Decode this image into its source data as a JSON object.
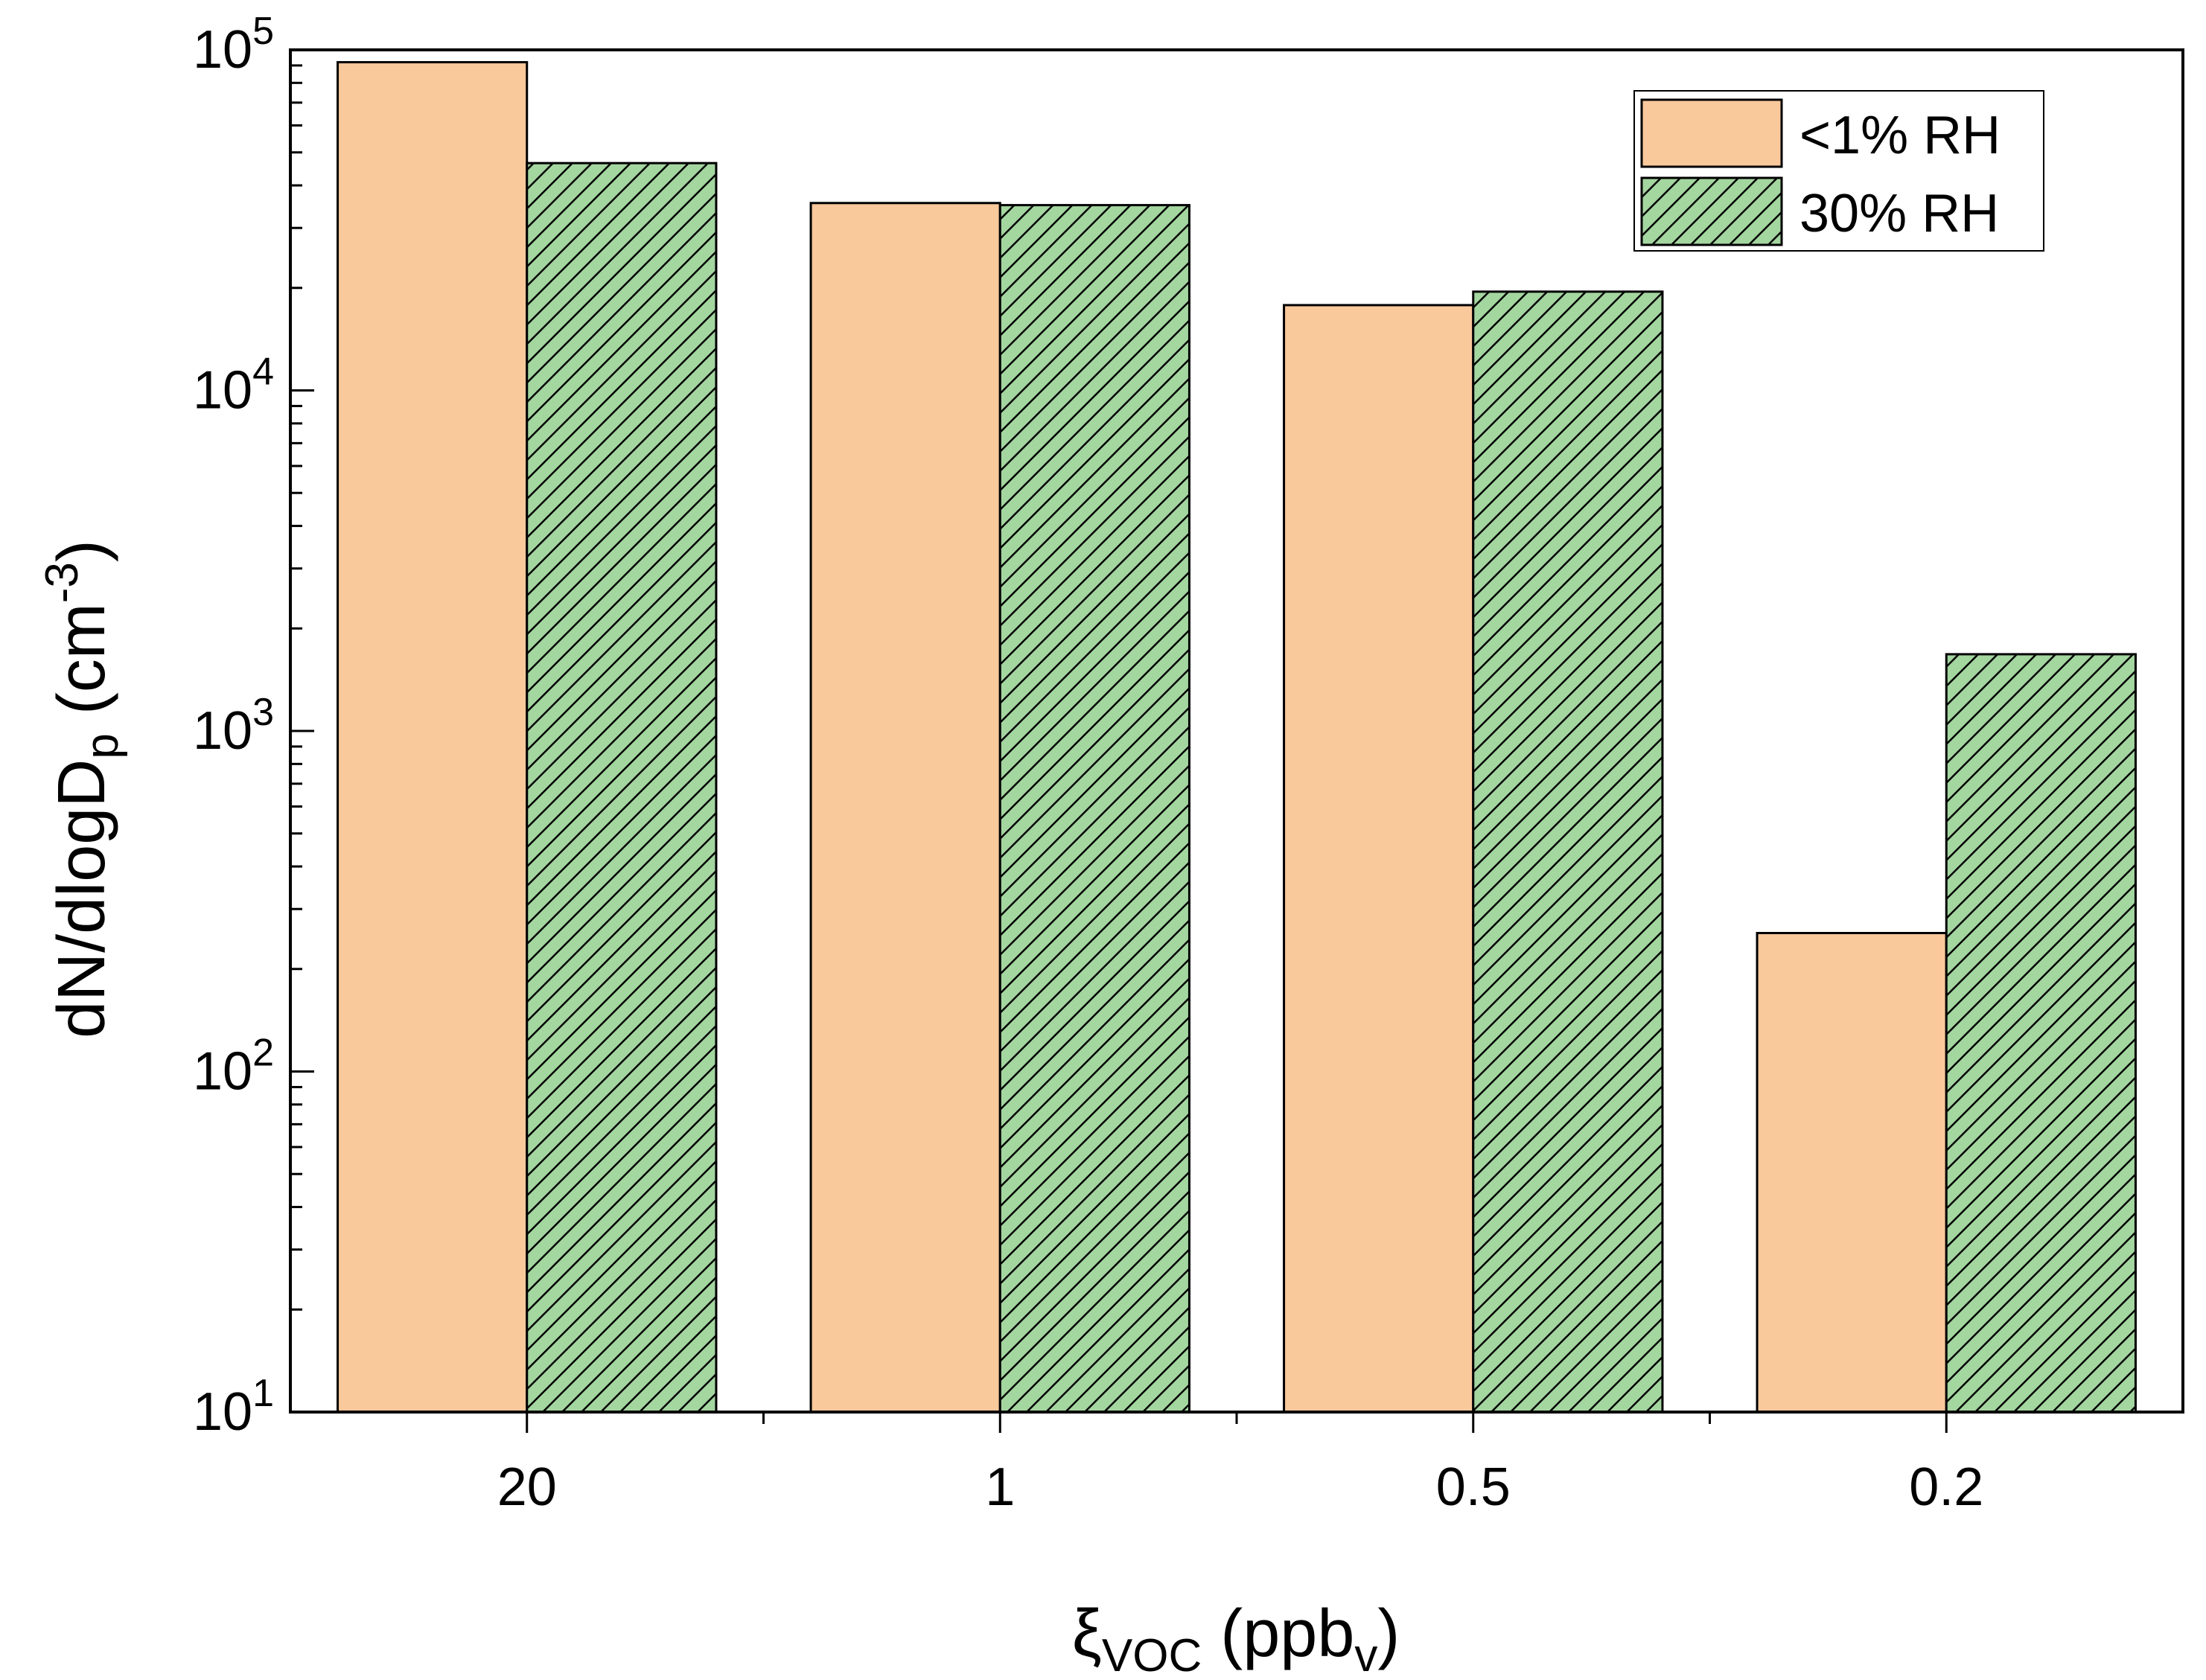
{
  "chart_data": {
    "type": "bar",
    "categories": [
      "20",
      "1",
      "0.5",
      "0.2"
    ],
    "series": [
      {
        "name": "<1% RH",
        "values": [
          92000,
          35500,
          17800,
          255
        ],
        "color": "#F9C89B",
        "pattern": "none"
      },
      {
        "name": "30% RH",
        "values": [
          46500,
          35000,
          19500,
          1680
        ],
        "color": "#A4D6A0",
        "pattern": "diagonal-hatch"
      }
    ],
    "y_scale": "log",
    "ylim": [
      10,
      100000
    ],
    "y_ticks": [
      {
        "base": "10",
        "exp": "1",
        "value": 10
      },
      {
        "base": "10",
        "exp": "2",
        "value": 100
      },
      {
        "base": "10",
        "exp": "3",
        "value": 1000
      },
      {
        "base": "10",
        "exp": "4",
        "value": 10000
      },
      {
        "base": "10",
        "exp": "5",
        "value": 100000
      }
    ],
    "xlabel": {
      "main": "ξ",
      "sub": "VOC",
      "mid": " (ppb",
      "sub2": "v",
      "end": ")"
    },
    "ylabel": {
      "part1": "dN/dlogD",
      "sub": "p",
      "part2": " (cm",
      "sup": "-3",
      "part3": ")"
    },
    "legend_position": "top-right",
    "edge_color": "#000000"
  }
}
